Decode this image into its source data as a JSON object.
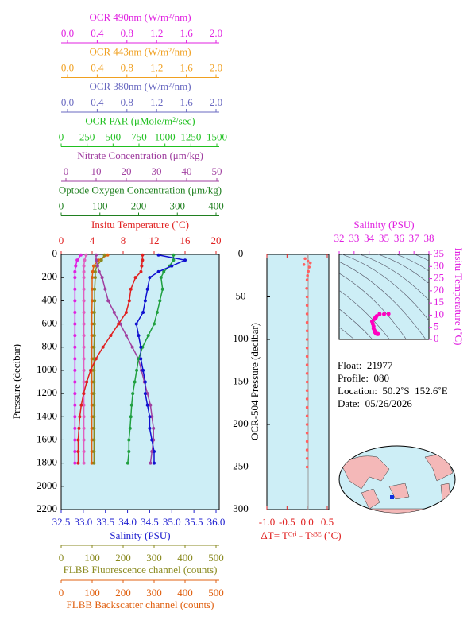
{
  "chart_data": [
    {
      "type": "line",
      "ylabel": "Pressure (decibar)",
      "ylim": [
        0,
        2200
      ],
      "y_inverted": true,
      "yticks": [
        0,
        200,
        400,
        600,
        800,
        1000,
        1200,
        1400,
        1600,
        1800,
        2000,
        2200
      ],
      "pressure": [
        5,
        50,
        100,
        150,
        200,
        300,
        400,
        500,
        600,
        700,
        800,
        900,
        1000,
        1100,
        1200,
        1300,
        1400,
        1500,
        1600,
        1700,
        1800
      ],
      "x_axes": [
        {
          "label": "OCR 490nm (W/m²/nm)",
          "side": "top",
          "color": "#e020e0",
          "xlim": [
            0,
            2
          ],
          "xticks": [
            {
              "value": 0,
              "label": "0.0"
            },
            0.4,
            0.8,
            1.2,
            1.6,
            {
              "value": 2,
              "label": "2.0"
            }
          ]
        },
        {
          "label": "OCR 443nm (W/m²/nm)",
          "side": "top",
          "color": "#f0a020",
          "xlim": [
            0,
            2
          ],
          "xticks": [
            {
              "value": 0,
              "label": "0.0"
            },
            0.4,
            0.8,
            1.2,
            1.6,
            {
              "value": 2,
              "label": "2.0"
            }
          ]
        },
        {
          "label": "OCR 380nm (W/m²/nm)",
          "side": "top",
          "color": "#6868c0",
          "xlim": [
            0,
            2
          ],
          "xticks": [
            {
              "value": 0,
              "label": "0.0"
            },
            0.4,
            0.8,
            1.2,
            1.6,
            {
              "value": 2,
              "label": "2.0"
            }
          ]
        },
        {
          "label": "OCR PAR (μMole/m²/sec)",
          "side": "top",
          "color": "#20c020",
          "xlim": [
            0,
            1500
          ],
          "xticks": [
            0,
            250,
            500,
            750,
            1000,
            1250,
            1500
          ]
        },
        {
          "label": "Nitrate Concentration (μm/kg)",
          "side": "top",
          "color": "#a040a0",
          "xlim": [
            0,
            50
          ],
          "xticks": [
            0,
            10,
            20,
            30,
            40,
            50
          ]
        },
        {
          "label": "Optode Oxygen Concentration (μm/kg)",
          "side": "top",
          "color": "#208020",
          "xlim": [
            0,
            400
          ],
          "xticks": [
            0,
            100,
            200,
            300,
            400
          ]
        },
        {
          "label": "Insitu Temperature (˚C)",
          "side": "top",
          "color": "#e02020",
          "xlim": [
            0,
            20
          ],
          "xticks": [
            0,
            4,
            8,
            12,
            16,
            20
          ]
        },
        {
          "label": "Salinity (PSU)",
          "side": "bottom",
          "color": "#2020d0",
          "xlim": [
            32.5,
            36
          ],
          "xticks": [
            32.5,
            {
              "value": 33,
              "label": "33.0"
            },
            33.5,
            {
              "value": 34,
              "label": "34.0"
            },
            34.5,
            {
              "value": 35,
              "label": "35.0"
            },
            35.5,
            {
              "value": 36,
              "label": "36.0"
            }
          ]
        },
        {
          "label": "FLBB Fluorescence channel (counts)",
          "side": "bottom",
          "color": "#8a8a20",
          "xlim": [
            0,
            500
          ],
          "xticks": [
            0,
            100,
            200,
            300,
            400,
            500
          ]
        },
        {
          "label": "FLBB Backscatter channel (counts)",
          "side": "bottom",
          "color": "#e06010",
          "xlim": [
            0,
            500
          ],
          "xticks": [
            0,
            100,
            200,
            300,
            400,
            500
          ]
        }
      ],
      "series": [
        {
          "axis": 0,
          "color": "#e020e0",
          "values": [
            0.18,
            0.13,
            0.11,
            0.1,
            0.1,
            0.1,
            0.1,
            0.1,
            0.1,
            0.1,
            0.1,
            0.1,
            0.1,
            0.1,
            0.1,
            0.1,
            0.1,
            0.1,
            0.1,
            0.1,
            0.1
          ]
        },
        {
          "axis": 2,
          "color": "#e060c0",
          "values": [
            0.25,
            0.23,
            0.22,
            0.22,
            0.22,
            0.22,
            0.22,
            0.22,
            0.22,
            0.22,
            0.22,
            0.22,
            0.22,
            0.22,
            0.22,
            0.22,
            0.22,
            0.22,
            0.22,
            0.22,
            0.22
          ]
        },
        {
          "axis": 9,
          "color": "#e06010",
          "values": [
            150,
            120,
            105,
            102,
            100,
            100,
            100,
            99,
            99,
            99,
            99,
            99,
            99,
            99,
            99,
            99,
            99,
            99,
            99,
            99,
            99
          ]
        },
        {
          "axis": 8,
          "color": "#8a8a20",
          "values": [
            140,
            130,
            115,
            110,
            110,
            108,
            108,
            107,
            107,
            107,
            106,
            106,
            106,
            106,
            106,
            106,
            106,
            106,
            106,
            106,
            106
          ]
        },
        {
          "axis": 4,
          "color": "#a040a0",
          "values": [
            10,
            10,
            10.5,
            11,
            12,
            13,
            14,
            16,
            18,
            20,
            22,
            24,
            25,
            26,
            27,
            28,
            28.5,
            29,
            29,
            28.5,
            28
          ]
        },
        {
          "axis": 5,
          "color": "#20a040",
          "values": [
            290,
            290,
            280,
            265,
            258,
            262,
            255,
            248,
            240,
            225,
            210,
            200,
            195,
            190,
            185,
            182,
            180,
            178,
            175,
            175,
            172
          ]
        },
        {
          "axis": 6,
          "color": "#e02020",
          "values": [
            10.5,
            10.5,
            10.4,
            10.3,
            9.6,
            9.0,
            8.8,
            8.4,
            7.4,
            6.4,
            5.4,
            4.5,
            3.8,
            3.3,
            2.9,
            2.6,
            2.4,
            2.3,
            2.2,
            2.2,
            2.2
          ]
        },
        {
          "axis": 7,
          "color": "#1010d0",
          "values": [
            34.7,
            35.3,
            35.0,
            34.7,
            34.5,
            34.45,
            34.4,
            34.35,
            34.2,
            34.25,
            34.3,
            34.3,
            34.35,
            34.4,
            34.4,
            34.45,
            34.5,
            34.5,
            34.55,
            34.6,
            34.6
          ]
        }
      ]
    },
    {
      "type": "scatter",
      "xlabel": "ΔT= Tᴼʳⁱ - Tˢᴮᴱ (˚C)",
      "ylabel": "OCR-504 Pressure (decibar)",
      "xlim": [
        -1,
        0.5
      ],
      "xticks": [
        {
          "value": -1,
          "label": "-1.0"
        },
        -0.5,
        {
          "value": 0,
          "label": "0.0"
        },
        0.5
      ],
      "ylim": [
        0,
        300
      ],
      "y_inverted": true,
      "yticks": [
        0,
        50,
        100,
        150,
        200,
        250,
        300
      ],
      "color": "#ff6060",
      "pressure": [
        5,
        8,
        10,
        12,
        15,
        20,
        25,
        30,
        40,
        50,
        60,
        70,
        80,
        90,
        100,
        110,
        120,
        130,
        140,
        150,
        160,
        170,
        180,
        190,
        200,
        210,
        220,
        230,
        240,
        250
      ],
      "values": [
        -0.05,
        0.02,
        0.08,
        -0.08,
        0.05,
        0.03,
        0.01,
        0.0,
        -0.01,
        0.0,
        0.0,
        0.0,
        0.0,
        0.0,
        0.0,
        0.0,
        0.0,
        0.0,
        0.0,
        0.0,
        0.0,
        0.0,
        0.0,
        0.0,
        0.0,
        0.0,
        0.0,
        0.0,
        0.0,
        0.0
      ]
    },
    {
      "type": "scatter",
      "title": "Salinity (PSU)",
      "ylabel": "Insitu Temperature (˚C)",
      "xlim": [
        32,
        38
      ],
      "xticks": [
        32,
        33,
        34,
        35,
        36,
        37,
        38
      ],
      "ylim": [
        0,
        35
      ],
      "yticks": [
        0,
        5,
        10,
        15,
        20,
        25,
        30,
        35
      ],
      "color": "#ff00c0",
      "x": [
        34.7,
        35.3,
        35.0,
        34.7,
        34.5,
        34.45,
        34.4,
        34.35,
        34.2,
        34.25,
        34.3,
        34.3,
        34.35,
        34.4,
        34.4,
        34.45,
        34.5,
        34.5,
        34.55,
        34.6,
        34.6
      ],
      "values": [
        10.5,
        10.5,
        10.4,
        10.3,
        9.6,
        9.0,
        8.8,
        8.4,
        7.4,
        6.4,
        5.4,
        4.5,
        3.8,
        3.3,
        2.9,
        2.6,
        2.4,
        2.3,
        2.2,
        2.2,
        2.2
      ]
    }
  ],
  "info": {
    "float": "Float:  21977",
    "profile": "Profile:  080",
    "location": "Location:  50.2˚S  152.6˚E",
    "date": "Date:  05/26/2026"
  }
}
